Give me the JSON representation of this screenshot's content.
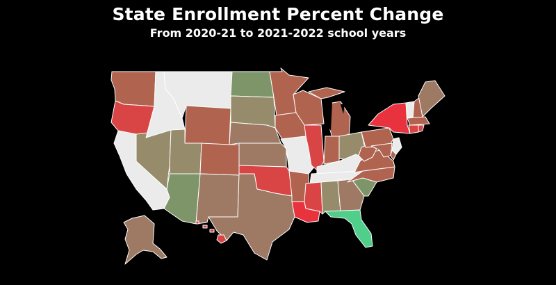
{
  "header": {
    "title": "State Enrollment Percent Change",
    "subtitle": "From 2020-21 to 2021-2022 school years"
  },
  "colors": {
    "background": "#000000",
    "no_data": "#ebebeb",
    "olive": "#968b6a",
    "sage": "#7d9568",
    "tan": "#9e7a64",
    "brick": "#b0634f",
    "red": "#d94545",
    "bright_red": "#e8323e",
    "green": "#4fcf8a"
  },
  "states": {
    "WA": "brick",
    "OR": "red",
    "CA": "no_data",
    "NV": "olive",
    "ID": "no_data",
    "MT": "no_data",
    "WY": "brick",
    "UT": "olive",
    "AZ": "sage",
    "CO": "brick",
    "NM": "tan",
    "ND": "sage",
    "SD": "olive",
    "NE": "tan",
    "KS": "tan",
    "OK": "red",
    "TX": "tan",
    "MN": "brick",
    "IA": "brick",
    "MO": "no_data",
    "AR": "brick",
    "LA": "bright_red",
    "WI": "brick",
    "IL": "red",
    "MI": "brick",
    "IN": "brick",
    "OH": "olive",
    "KY": "no_data",
    "TN": "no_data",
    "MS": "red",
    "AL": "olive",
    "GA": "tan",
    "FL": "green",
    "SC": "sage",
    "NC": "brick",
    "VA": "brick",
    "WV": "brick",
    "PA": "brick",
    "NY": "bright_red",
    "VT": "no_data",
    "NH": "brick",
    "ME": "tan",
    "MA": "brick",
    "CT": "red",
    "RI": "red",
    "NJ": "no_data",
    "DE": "brick",
    "MD": "brick",
    "AK": "tan",
    "HI": "red"
  }
}
